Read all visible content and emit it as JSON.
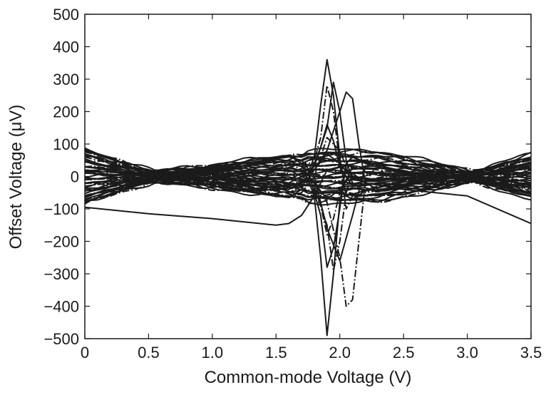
{
  "chart_data": {
    "type": "line",
    "title": "",
    "xlabel": "Common-mode Voltage (V)",
    "ylabel": "Offset Voltage (μV)",
    "xlim": [
      0,
      3.5
    ],
    "ylim": [
      -500,
      500
    ],
    "xticks": [
      {
        "value": 0,
        "label": "0"
      },
      {
        "value": 0.5,
        "label": "0.5"
      },
      {
        "value": 1.0,
        "label": "1.0"
      },
      {
        "value": 1.5,
        "label": "1.5"
      },
      {
        "value": 2.0,
        "label": "2.0"
      },
      {
        "value": 2.5,
        "label": "2.5"
      },
      {
        "value": 3.0,
        "label": "3.0"
      },
      {
        "value": 3.5,
        "label": "3.5"
      }
    ],
    "yticks": [
      {
        "value": 500,
        "label": "500"
      },
      {
        "value": 400,
        "label": "400"
      },
      {
        "value": 300,
        "label": "300"
      },
      {
        "value": 200,
        "label": "200"
      },
      {
        "value": 100,
        "label": "100"
      },
      {
        "value": 0,
        "label": "0"
      },
      {
        "value": -100,
        "label": "−100"
      },
      {
        "value": -200,
        "label": "−200"
      },
      {
        "value": -300,
        "label": "−300"
      },
      {
        "value": -400,
        "label": "−400"
      },
      {
        "value": -500,
        "label": "−500"
      }
    ],
    "grid": false,
    "legend": "none",
    "line_color": "#1b1b1b",
    "series": [
      {
        "x": [
          0,
          0.3,
          0.55,
          0.8,
          1.1,
          1.4,
          1.6,
          1.7,
          1.8,
          1.85,
          1.9,
          1.95,
          2.0,
          2.05,
          2.1,
          2.2,
          2.4,
          2.6,
          2.8,
          3.0,
          3.2,
          3.5
        ],
        "y": [
          80,
          40,
          0,
          -15,
          -35,
          -55,
          -65,
          -40,
          60,
          220,
          360,
          250,
          60,
          -60,
          -70,
          -45,
          -25,
          -10,
          0,
          10,
          30,
          60
        ]
      },
      {
        "x": [
          0,
          0.3,
          0.55,
          0.8,
          1.1,
          1.4,
          1.6,
          1.7,
          1.8,
          1.85,
          1.9,
          1.95,
          2.0,
          2.05,
          2.1,
          2.2,
          2.4,
          2.6,
          2.8,
          3.0,
          3.2,
          3.5
        ],
        "y": [
          -80,
          -40,
          0,
          15,
          35,
          55,
          65,
          40,
          -60,
          -250,
          -490,
          -300,
          -80,
          40,
          60,
          45,
          25,
          10,
          0,
          -10,
          -30,
          -60
        ]
      },
      {
        "x": [
          0,
          0.3,
          0.55,
          0.8,
          1.1,
          1.4,
          1.6,
          1.75,
          1.85,
          1.9,
          1.95,
          2.0,
          2.05,
          2.1,
          2.2,
          2.4,
          2.6,
          2.8,
          3.0,
          3.2,
          3.5
        ],
        "y": [
          60,
          30,
          0,
          -10,
          -25,
          -40,
          -50,
          -20,
          120,
          280,
          200,
          40,
          -100,
          -60,
          -40,
          -20,
          -8,
          0,
          8,
          25,
          50
        ]
      },
      {
        "x": [
          0,
          0.3,
          0.55,
          0.8,
          1.1,
          1.4,
          1.6,
          1.75,
          1.85,
          1.9,
          1.95,
          2.0,
          2.05,
          2.1,
          2.2,
          2.4,
          2.6,
          2.8,
          3.0,
          3.2,
          3.5
        ],
        "y": [
          -60,
          -30,
          0,
          10,
          25,
          40,
          50,
          20,
          -120,
          -280,
          -220,
          -100,
          40,
          60,
          40,
          20,
          8,
          0,
          -8,
          -25,
          -50
        ]
      },
      {
        "x": [
          0,
          0.3,
          0.55,
          0.8,
          1.1,
          1.4,
          1.6,
          1.75,
          1.9,
          2.0,
          2.05,
          2.1,
          2.15,
          2.2,
          2.3,
          2.5,
          2.7,
          2.9,
          3.05,
          3.2,
          3.5
        ],
        "y": [
          30,
          15,
          0,
          -5,
          -10,
          -20,
          -30,
          -10,
          80,
          200,
          260,
          240,
          100,
          -20,
          -40,
          -30,
          -15,
          -5,
          0,
          15,
          40
        ]
      },
      {
        "x": [
          0,
          0.3,
          0.55,
          0.8,
          1.1,
          1.4,
          1.6,
          1.75,
          1.9,
          2.0,
          2.05,
          2.1,
          2.15,
          2.2,
          2.3,
          2.5,
          2.7,
          2.9,
          3.05,
          3.2,
          3.5
        ],
        "y": [
          -30,
          -15,
          0,
          5,
          10,
          20,
          30,
          10,
          -80,
          -250,
          -400,
          -380,
          -200,
          -20,
          40,
          30,
          15,
          5,
          0,
          -15,
          -40
        ]
      },
      {
        "x": [
          0,
          0.5,
          1.0,
          1.5,
          1.6,
          1.7,
          1.8,
          1.9,
          2.0,
          2.1,
          2.2,
          2.5,
          3.0,
          3.5
        ],
        "y": [
          -95,
          -115,
          -130,
          -150,
          -145,
          -120,
          -60,
          20,
          30,
          10,
          -20,
          -40,
          -60,
          -145
        ]
      },
      {
        "x": [
          0,
          0.3,
          0.55,
          0.8,
          1.1,
          1.4,
          1.6,
          1.75,
          1.85,
          1.9,
          1.95,
          2.0,
          2.1,
          2.2,
          2.4,
          2.6,
          2.8,
          3.0,
          3.2,
          3.5
        ],
        "y": [
          45,
          20,
          0,
          -10,
          -20,
          -30,
          -40,
          -10,
          90,
          160,
          110,
          30,
          -30,
          -25,
          -15,
          -5,
          0,
          5,
          15,
          35
        ]
      },
      {
        "x": [
          0,
          0.3,
          0.55,
          0.8,
          1.1,
          1.4,
          1.6,
          1.75,
          1.85,
          1.9,
          1.95,
          2.0,
          2.1,
          2.2,
          2.4,
          2.6,
          2.8,
          3.0,
          3.2,
          3.5
        ],
        "y": [
          -45,
          -20,
          0,
          10,
          20,
          30,
          40,
          10,
          -90,
          -180,
          -130,
          -50,
          30,
          25,
          15,
          5,
          0,
          -5,
          -15,
          -35
        ]
      },
      {
        "x": [
          0,
          0.3,
          0.55,
          0.8,
          1.1,
          1.4,
          1.6,
          1.8,
          1.9,
          2.0,
          2.1,
          2.2,
          2.4,
          2.6,
          2.8,
          3.0,
          3.2,
          3.5
        ],
        "y": [
          20,
          10,
          0,
          -3,
          -8,
          -15,
          -20,
          20,
          70,
          40,
          -10,
          -15,
          -10,
          -5,
          0,
          3,
          10,
          25
        ]
      },
      {
        "x": [
          0,
          0.3,
          0.55,
          0.8,
          1.1,
          1.4,
          1.6,
          1.8,
          1.9,
          2.0,
          2.1,
          2.2,
          2.4,
          2.6,
          2.8,
          3.0,
          3.2,
          3.5
        ],
        "y": [
          -20,
          -10,
          0,
          3,
          8,
          15,
          20,
          -20,
          -70,
          -40,
          10,
          15,
          10,
          5,
          0,
          -3,
          -10,
          -25
        ]
      },
      {
        "x": [
          0,
          0.3,
          0.55,
          0.8,
          1.1,
          1.4,
          1.6,
          1.7,
          1.8,
          1.9,
          2.0,
          2.1,
          2.2,
          2.4,
          2.6,
          2.8,
          3.0,
          3.2,
          3.5
        ],
        "y": [
          70,
          35,
          0,
          -12,
          -30,
          -50,
          -60,
          -50,
          0,
          120,
          80,
          -20,
          -50,
          -35,
          -18,
          -5,
          5,
          25,
          55
        ]
      },
      {
        "x": [
          0,
          0.3,
          0.55,
          0.8,
          1.1,
          1.4,
          1.6,
          1.7,
          1.8,
          1.9,
          2.0,
          2.1,
          2.2,
          2.4,
          2.6,
          2.8,
          3.0,
          3.2,
          3.5
        ],
        "y": [
          -70,
          -35,
          0,
          12,
          30,
          50,
          60,
          50,
          0,
          -160,
          -260,
          -120,
          30,
          35,
          18,
          5,
          -5,
          -25,
          -55
        ]
      },
      {
        "x": [
          0,
          0.3,
          0.55,
          0.8,
          1.1,
          1.4,
          1.6,
          1.8,
          1.9,
          1.95,
          2.0,
          2.05,
          2.1,
          2.2,
          2.4,
          2.6,
          2.8,
          3.0,
          3.2,
          3.5
        ],
        "y": [
          10,
          5,
          0,
          -2,
          -4,
          -8,
          -10,
          30,
          150,
          290,
          200,
          50,
          -10,
          -8,
          -5,
          -2,
          0,
          2,
          6,
          12
        ]
      },
      {
        "x": [
          0,
          0.3,
          0.55,
          0.8,
          1.1,
          1.4,
          1.6,
          1.8,
          1.9,
          1.95,
          2.0,
          2.05,
          2.1,
          2.2,
          2.4,
          2.6,
          2.8,
          3.0,
          3.2,
          3.5
        ],
        "y": [
          -10,
          -5,
          0,
          2,
          4,
          8,
          10,
          -30,
          -150,
          -290,
          -200,
          -50,
          10,
          8,
          5,
          2,
          0,
          -2,
          -6,
          -12
        ]
      }
    ]
  }
}
